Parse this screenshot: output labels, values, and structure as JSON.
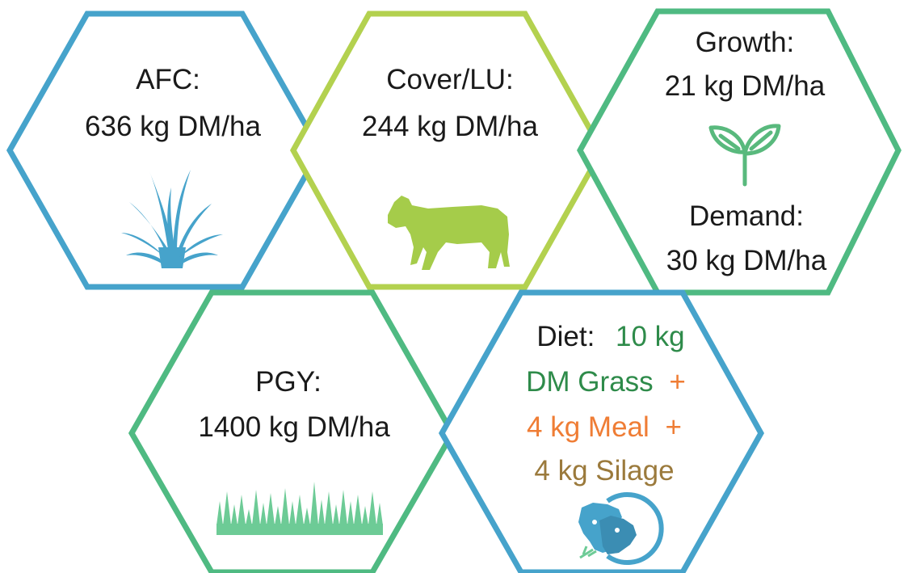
{
  "colors": {
    "blue": "#46a3cb",
    "lime": "#b3d14f",
    "teal_green": "#4fba82",
    "text": "#1a1a1a",
    "diet_green": "#2e8b4a",
    "diet_orange": "#ef7d35",
    "diet_brown": "#9b7a3c",
    "cow_green": "#a5cc4a",
    "sprout_green": "#59b97d",
    "grass_green": "#6dcb96",
    "tuft_blue": "#46a3cb"
  },
  "hexagons": [
    {
      "id": "afc",
      "label": "AFC:",
      "value": "636 kg DM/ha",
      "border_color": "#46a3cb",
      "icon": "grass-tuft-icon"
    },
    {
      "id": "cover",
      "label": "Cover/LU:",
      "value": "244 kg DM/ha",
      "border_color": "#b3d14f",
      "icon": "cow-icon"
    },
    {
      "id": "growth-demand",
      "growth_label": "Growth:",
      "growth_value": "21 kg DM/ha",
      "demand_label": "Demand:",
      "demand_value": "30 kg DM/ha",
      "border_color": "#4fba82",
      "icon": "sprout-icon"
    },
    {
      "id": "pgy",
      "label": "PGY:",
      "value": "1400 kg DM/ha",
      "border_color": "#4fba82",
      "icon": "grass-strip-icon"
    },
    {
      "id": "diet",
      "label": "Diet:",
      "grass_amount": "10 kg",
      "grass_text": "DM Grass",
      "plus_1": "+",
      "meal_text": "4 kg Meal",
      "plus_2": "+",
      "silage_text": "4 kg Silage",
      "border_color": "#46a3cb",
      "icon": "cow-and-calf-icon"
    }
  ]
}
